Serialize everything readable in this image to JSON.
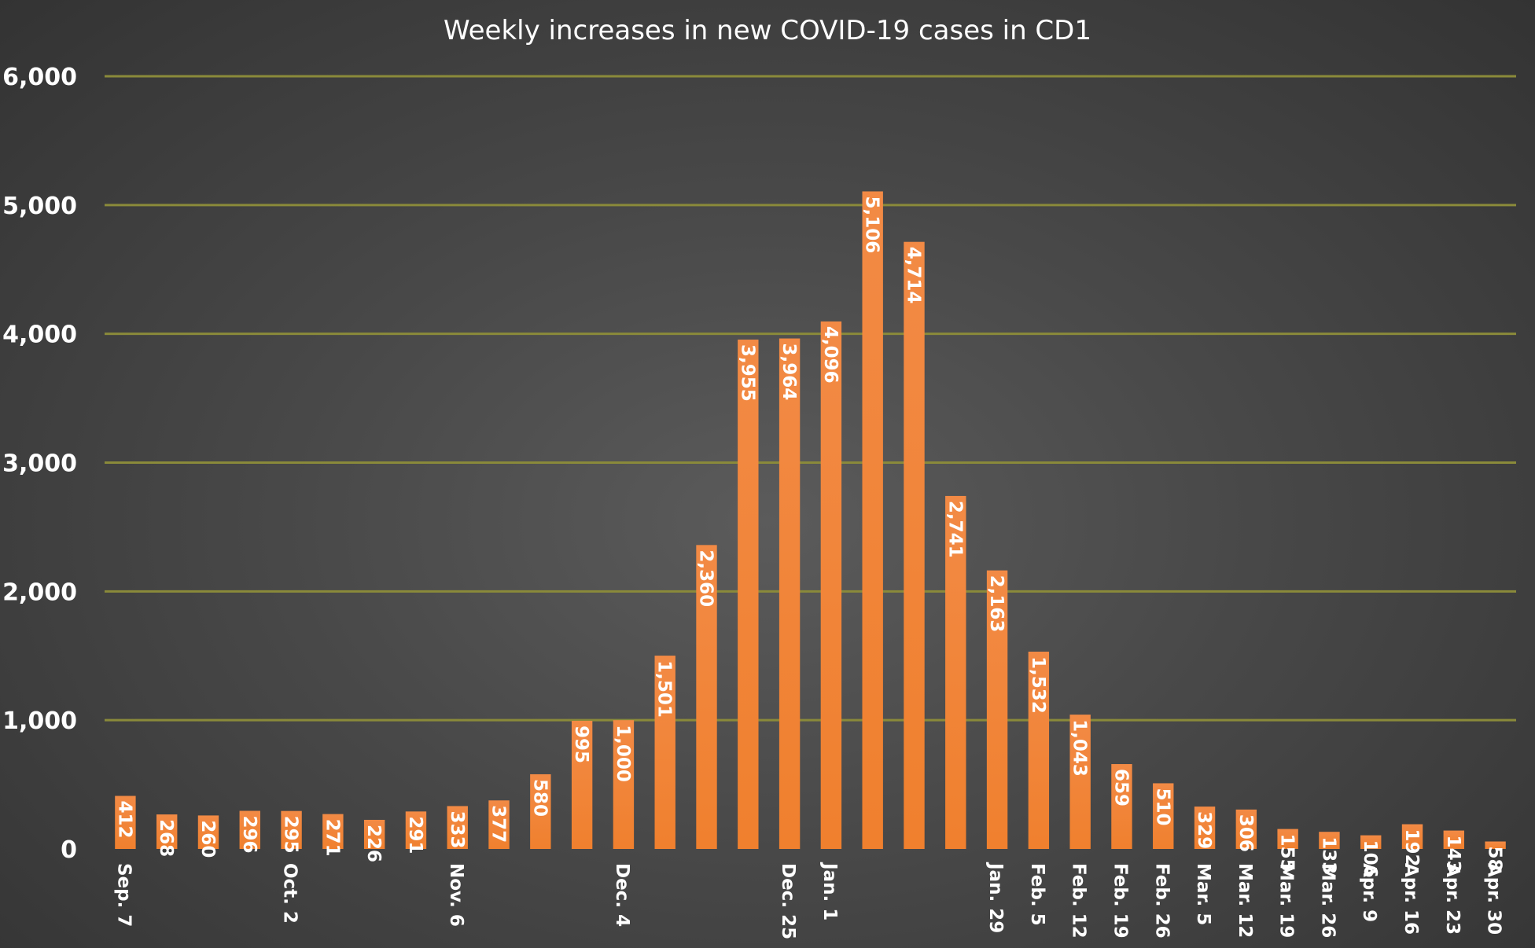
{
  "chart_data": {
    "type": "bar",
    "title": "Weekly increases in new COVID-19 cases in CD1",
    "xlabel": "",
    "ylabel": "",
    "ylim": [
      0,
      6000
    ],
    "yticks": [
      "0",
      "1,000",
      "2,000",
      "3,000",
      "4,000",
      "5,000",
      "6,000"
    ],
    "grid": true,
    "legend": "none",
    "bar_color": "#f0802e",
    "grid_color": "#8a8a3a",
    "categories": [
      "Sep. 7",
      "",
      "",
      "",
      "Oct. 2",
      "",
      "",
      "",
      "Nov. 6",
      "",
      "",
      "",
      "Dec. 4",
      "",
      "",
      "",
      "Dec. 25",
      "Jan. 1",
      "",
      "",
      "",
      "Jan. 29",
      "Feb. 5",
      "Feb. 12",
      "Feb. 19",
      "Feb. 26",
      "Mar. 5",
      "Mar. 12",
      "Mar. 19",
      "Mar. 26",
      "Apr. 9",
      "Apr. 16",
      "Apr. 23",
      "Apr. 30"
    ],
    "values": [
      412,
      268,
      260,
      296,
      295,
      271,
      226,
      291,
      333,
      377,
      580,
      995,
      1000,
      1501,
      2360,
      3955,
      3964,
      4096,
      5106,
      4714,
      2741,
      2163,
      1532,
      1043,
      659,
      510,
      329,
      306,
      155,
      133,
      106,
      192,
      143,
      58
    ],
    "value_labels": [
      "412",
      "268",
      "260",
      "296",
      "295",
      "271",
      "226",
      "291",
      "333",
      "377",
      "580",
      "995",
      "1,000",
      "1,501",
      "2,360",
      "3,955",
      "3,964",
      "4,096",
      "5,106",
      "4,714",
      "2,741",
      "2,163",
      "1,532",
      "1,043",
      "659",
      "510",
      "329",
      "306",
      "155",
      "133",
      "106",
      "192",
      "143",
      "58"
    ]
  }
}
